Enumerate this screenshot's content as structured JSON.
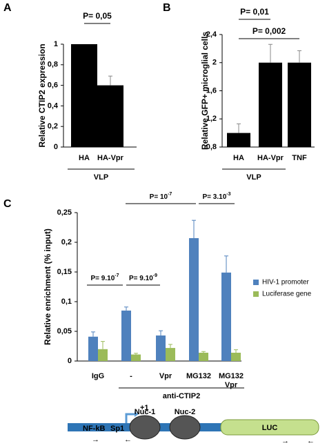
{
  "chart_data": [
    {
      "type": "bar",
      "panel": "A",
      "ylabel": "Relative CTIP2 expression",
      "categories": [
        "HA",
        "HA-Vpr"
      ],
      "series": [
        {
          "color": "#000000",
          "values": [
            1,
            0.6
          ],
          "errors": [
            null,
            0.09
          ]
        }
      ],
      "ylim": [
        0,
        1
      ],
      "yticks": [
        0,
        {
          "value": 0.2,
          "label": "0,2"
        },
        {
          "value": 0.4,
          "label": "0,4"
        },
        {
          "value": 0.6,
          "label": "0,6"
        },
        {
          "value": 0.8,
          "label": "0,8"
        },
        1
      ],
      "group_label": "VLP",
      "annotations": [
        {
          "text": "P= 0,05"
        }
      ]
    },
    {
      "type": "bar",
      "panel": "B",
      "ylabel": "Relative GFP+ microglial cells",
      "categories": [
        "HA",
        "HA-Vpr",
        "TNF"
      ],
      "series": [
        {
          "color": "#000000",
          "values": [
            1,
            2,
            2
          ],
          "errors": [
            0.13,
            0.26,
            0.17
          ]
        }
      ],
      "ylim": [
        0.8,
        2.4
      ],
      "yticks": [
        {
          "value": 0.8,
          "label": "0,8"
        },
        {
          "value": 1.2,
          "label": "1,2"
        },
        {
          "value": 1.6,
          "label": "1,6"
        },
        2,
        {
          "value": 2.4,
          "label": "2,4"
        }
      ],
      "group_label": "VLP",
      "annotations": [
        {
          "text": "P= 0,01"
        },
        {
          "text": "P= 0,002"
        }
      ]
    },
    {
      "type": "bar",
      "panel": "C",
      "ylabel": "Relative enrichment (% input)",
      "categories": [
        "IgG",
        "-",
        "Vpr",
        "MG132",
        "MG132\nVpr"
      ],
      "series": [
        {
          "name": "HIV-1 promoter",
          "color": "#4f81bd",
          "values": [
            0.041,
            0.085,
            0.043,
            0.207,
            0.149
          ],
          "errors": [
            0.008,
            0.006,
            0.008,
            0.03,
            0.028
          ]
        },
        {
          "name": "Luciferase gene",
          "color": "#9bbb59",
          "values": [
            0.02,
            0.011,
            0.022,
            0.014,
            0.014
          ],
          "errors": [
            0.013,
            0.002,
            0.006,
            0.002,
            0.005
          ]
        }
      ],
      "ylim": [
        0,
        0.25
      ],
      "yticks": [
        0,
        {
          "value": 0.05,
          "label": "0,05"
        },
        {
          "value": 0.1,
          "label": "0,1"
        },
        {
          "value": 0.15,
          "label": "0,15"
        },
        {
          "value": 0.2,
          "label": "0,2"
        },
        {
          "value": 0.25,
          "label": "0,25"
        }
      ],
      "legend": "right",
      "group_label": "anti-CTIP2",
      "annotations": [
        {
          "text": "P= 9.10",
          "sup": "-7"
        },
        {
          "text": "P= 9.10",
          "sup": "-9"
        },
        {
          "text": "P= 10",
          "sup": "-7"
        },
        {
          "text": "P= 3.10",
          "sup": "-3"
        }
      ]
    }
  ],
  "diagram": {
    "nfkb": "NF-kB",
    "sp1": "Sp1",
    "tss": "+1",
    "nuc1": "Nuc-1",
    "nuc2": "Nuc-2",
    "luc": "LUC"
  }
}
